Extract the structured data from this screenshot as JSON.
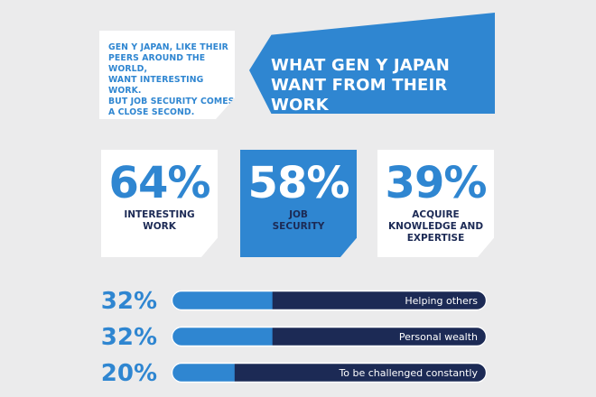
{
  "intro": {
    "text": "GEN Y JAPAN, LIKE THEIR\nPEERS AROUND THE WORLD,\nWANT INTERESTING WORK.\nBUT JOB SECURITY COMES\nA CLOSE SECOND."
  },
  "header": {
    "title": "WHAT GEN Y JAPAN\nWANT FROM THEIR WORK"
  },
  "stats": [
    {
      "value": "64%",
      "label": "INTERESTING\nWORK",
      "style": "white"
    },
    {
      "value": "58%",
      "label": "JOB\nSECURITY",
      "style": "blue"
    },
    {
      "value": "39%",
      "label": "ACQUIRE\nKNOWLEDGE AND\nEXPERTISE",
      "style": "white"
    }
  ],
  "colors": {
    "background": "#ebebec",
    "accent_blue": "#2f86d1",
    "navy": "#1c2a55",
    "white": "#ffffff"
  },
  "chart_data": {
    "type": "bar",
    "orientation": "horizontal",
    "categories": [
      "Helping others",
      "Personal wealth",
      "To be challenged constantly"
    ],
    "values": [
      32,
      32,
      20
    ],
    "value_labels": [
      "32%",
      "32%",
      "20%"
    ],
    "xlim": [
      0,
      100
    ],
    "grid": false,
    "legend": "none"
  }
}
